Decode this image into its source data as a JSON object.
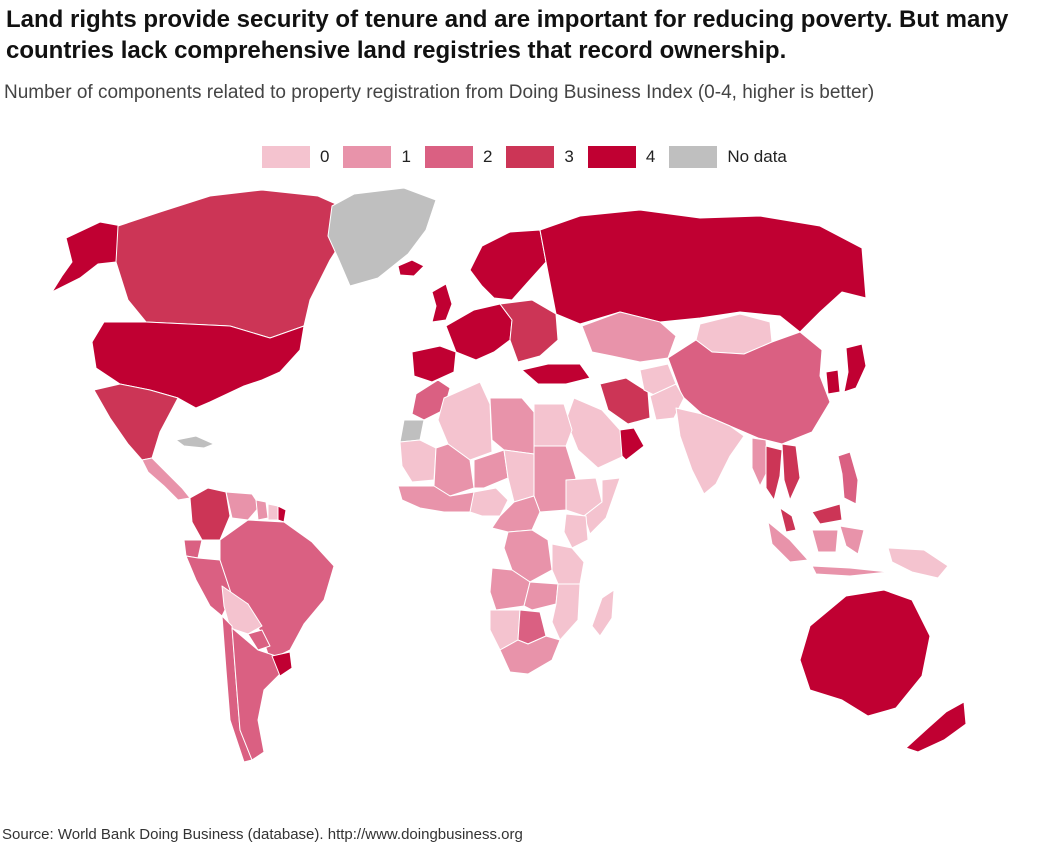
{
  "header": {
    "title": "Land rights provide security of tenure and are important for reducing poverty. But many countries lack comprehensive land registries that record ownership.",
    "subtitle": "Number of components related to property registration from Doing Business Index (0-4, higher is better)"
  },
  "legend": [
    {
      "label": "0",
      "color": "#f4c3cf"
    },
    {
      "label": "1",
      "color": "#e893aa"
    },
    {
      "label": "2",
      "color": "#da6082"
    },
    {
      "label": "3",
      "color": "#cc3556"
    },
    {
      "label": "4",
      "color": "#c00032"
    },
    {
      "label": "No data",
      "color": "#bfbfbf"
    }
  ],
  "map": {
    "regions": [
      {
        "name": "Alaska",
        "value": 4
      },
      {
        "name": "Canada",
        "value": 3
      },
      {
        "name": "Greenland",
        "value": "No data"
      },
      {
        "name": "Iceland",
        "value": 4
      },
      {
        "name": "United States",
        "value": 4
      },
      {
        "name": "Mexico",
        "value": 3
      },
      {
        "name": "Central America",
        "value": 1
      },
      {
        "name": "Cuba",
        "value": "No data"
      },
      {
        "name": "Colombia",
        "value": 3
      },
      {
        "name": "Venezuela",
        "value": 1
      },
      {
        "name": "Guyana",
        "value": 1
      },
      {
        "name": "Suriname",
        "value": 0
      },
      {
        "name": "French Guiana",
        "value": 4
      },
      {
        "name": "Ecuador",
        "value": 2
      },
      {
        "name": "Peru",
        "value": 2
      },
      {
        "name": "Brazil",
        "value": 2
      },
      {
        "name": "Bolivia",
        "value": 0
      },
      {
        "name": "Paraguay",
        "value": 2
      },
      {
        "name": "Chile",
        "value": 2
      },
      {
        "name": "Argentina",
        "value": 2
      },
      {
        "name": "Uruguay",
        "value": 4
      },
      {
        "name": "Russia",
        "value": 4
      },
      {
        "name": "Scandinavia",
        "value": 4
      },
      {
        "name": "United Kingdom",
        "value": 4
      },
      {
        "name": "Western Europe",
        "value": 4
      },
      {
        "name": "Spain",
        "value": 4
      },
      {
        "name": "Eastern Europe",
        "value": 3
      },
      {
        "name": "Turkey",
        "value": 4
      },
      {
        "name": "Kazakhstan",
        "value": 1
      },
      {
        "name": "Mongolia",
        "value": 0
      },
      {
        "name": "China",
        "value": 2
      },
      {
        "name": "Korea",
        "value": 4
      },
      {
        "name": "Japan",
        "value": 4
      },
      {
        "name": "Iran",
        "value": 3
      },
      {
        "name": "Saudi Arabia",
        "value": 0
      },
      {
        "name": "Oman",
        "value": 4
      },
      {
        "name": "Afghanistan",
        "value": 0
      },
      {
        "name": "Pakistan",
        "value": 0
      },
      {
        "name": "India",
        "value": 0
      },
      {
        "name": "Myanmar",
        "value": 1
      },
      {
        "name": "Thailand",
        "value": 3
      },
      {
        "name": "Vietnam",
        "value": 3
      },
      {
        "name": "Malaysia",
        "value": 3
      },
      {
        "name": "Indonesia",
        "value": 1
      },
      {
        "name": "Philippines",
        "value": 2
      },
      {
        "name": "Papua New Guinea",
        "value": 0
      },
      {
        "name": "Morocco",
        "value": 2
      },
      {
        "name": "Western Sahara",
        "value": "No data"
      },
      {
        "name": "Algeria",
        "value": 0
      },
      {
        "name": "Libya",
        "value": 1
      },
      {
        "name": "Egypt",
        "value": 0
      },
      {
        "name": "Mauritania",
        "value": 0
      },
      {
        "name": "Mali",
        "value": 1
      },
      {
        "name": "Niger",
        "value": 1
      },
      {
        "name": "Chad",
        "value": 0
      },
      {
        "name": "Sudan",
        "value": 1
      },
      {
        "name": "Ethiopia",
        "value": 0
      },
      {
        "name": "Somalia",
        "value": 0
      },
      {
        "name": "West Africa",
        "value": 1
      },
      {
        "name": "Nigeria",
        "value": 0
      },
      {
        "name": "Central Africa",
        "value": 1
      },
      {
        "name": "DR Congo",
        "value": 1
      },
      {
        "name": "Kenya",
        "value": 0
      },
      {
        "name": "Tanzania",
        "value": 0
      },
      {
        "name": "Angola",
        "value": 1
      },
      {
        "name": "Zambia",
        "value": 1
      },
      {
        "name": "Namibia",
        "value": 0
      },
      {
        "name": "Botswana",
        "value": 2
      },
      {
        "name": "South Africa",
        "value": 1
      },
      {
        "name": "Mozambique",
        "value": 0
      },
      {
        "name": "Madagascar",
        "value": 0
      },
      {
        "name": "Australia",
        "value": 4
      },
      {
        "name": "New Zealand",
        "value": 4
      }
    ]
  },
  "source": "Source: World Bank Doing Business (database). http://www.doingbusiness.org"
}
